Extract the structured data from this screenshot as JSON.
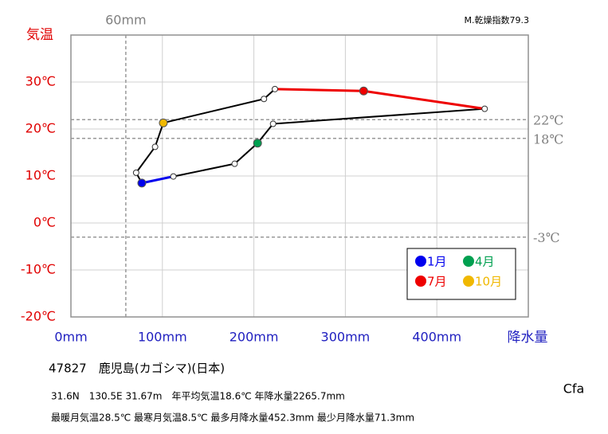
{
  "chart_data": {
    "type": "climograph",
    "y_label": "気温",
    "x_label": "降水量",
    "dryness_index": "M.乾燥指数79.3",
    "x": [
      77.5,
      112,
      179,
      204,
      221,
      452.3,
      320,
      223,
      211,
      101,
      92,
      71.3
    ],
    "values": [
      8.5,
      9.9,
      12.6,
      17.0,
      21.1,
      24.3,
      28.1,
      28.5,
      26.4,
      21.3,
      16.2,
      10.7
    ],
    "point_colors": [
      "#0000ee",
      null,
      null,
      "#00a050",
      null,
      null,
      "#ee0000",
      null,
      null,
      "#f0b800",
      null,
      null
    ],
    "segment_colors": [
      "#0000ee",
      "#000000",
      "#000000",
      "#000000",
      "#000000",
      "#ee0000",
      "#ee0000",
      "#000000",
      "#000000",
      "#000000",
      "#000000",
      "#000000"
    ],
    "closed": true,
    "legend": [
      {
        "label": "1月",
        "color": "#0000ee"
      },
      {
        "label": "4月",
        "color": "#00a050"
      },
      {
        "label": "7月",
        "color": "#ee0000"
      },
      {
        "label": "10月",
        "color": "#f0b800"
      }
    ],
    "xlim": [
      0,
      500
    ],
    "ylim": [
      -20,
      40
    ],
    "xticks": [
      {
        "value": 0,
        "label": "0mm"
      },
      {
        "value": 100,
        "label": "100mm"
      },
      {
        "value": 200,
        "label": "200mm"
      },
      {
        "value": 300,
        "label": "300mm"
      },
      {
        "value": 400,
        "label": "400mm"
      }
    ],
    "yticks": [
      {
        "value": -20,
        "label": "-20℃"
      },
      {
        "value": -10,
        "label": "-10℃"
      },
      {
        "value": 0,
        "label": "0℃"
      },
      {
        "value": 10,
        "label": "10℃"
      },
      {
        "value": 20,
        "label": "20℃"
      },
      {
        "value": 30,
        "label": "30℃"
      }
    ],
    "grid": true,
    "hlines": [
      {
        "value": 22,
        "label": "22℃"
      },
      {
        "value": 18,
        "label": "18℃"
      },
      {
        "value": -3,
        "label": "-3℃"
      }
    ],
    "vlines": [
      {
        "value": 60,
        "label": "60mm"
      }
    ]
  },
  "station": {
    "name": "47827　鹿児島(カゴシマ)(日本)",
    "line1": "31.6N　130.5E 31.67m　年平均気温18.6℃ 年降水量2265.7mm",
    "line2": "最暖月気温28.5℃ 最寒月気温8.5℃ 最多月降水量452.3mm 最少月降水量71.3mm",
    "climate": "Cfa"
  }
}
